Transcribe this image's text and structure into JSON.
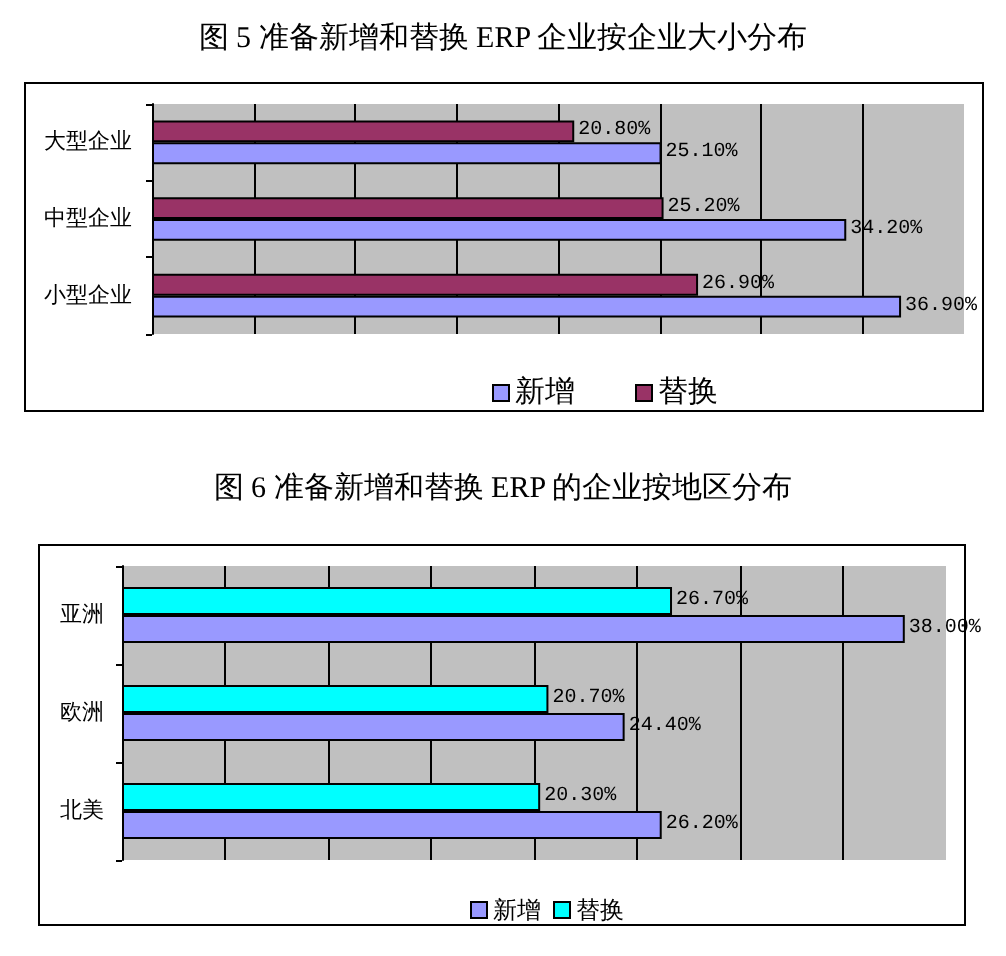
{
  "chart_data": [
    {
      "type": "bar",
      "orientation": "horizontal",
      "title": "图 5 准备新增和替换 ERP 企业按企业大小分布",
      "categories": [
        "大型企业",
        "中型企业",
        "小型企业"
      ],
      "series": [
        {
          "name": "新增",
          "color": "#9999ff",
          "values": [
            25.1,
            34.2,
            36.9
          ],
          "value_labels": [
            "25.10%",
            "34.20%",
            "36.90%"
          ]
        },
        {
          "name": "替换",
          "color": "#993366",
          "values": [
            20.8,
            25.2,
            26.9
          ],
          "value_labels": [
            "20.80%",
            "25.20%",
            "26.90%"
          ]
        }
      ],
      "xlim": [
        0,
        40
      ],
      "xticks": [
        {
          "value": 0,
          "label": null
        },
        {
          "value": 5,
          "label": null
        },
        {
          "value": 10,
          "label": null
        },
        {
          "value": 15,
          "label": null
        },
        {
          "value": 20,
          "label": null
        },
        {
          "value": 25,
          "label": null
        },
        {
          "value": 30,
          "label": null
        },
        {
          "value": 35,
          "label": null
        },
        {
          "value": 40,
          "label": null
        }
      ],
      "tick_labels": "y",
      "grid": "x",
      "legend": "bottom"
    },
    {
      "type": "bar",
      "orientation": "horizontal",
      "title": "图 6 准备新增和替换 ERP 的企业按地区分布",
      "categories": [
        "亚洲",
        "欧洲",
        "北美"
      ],
      "series": [
        {
          "name": "新增",
          "color": "#9999ff",
          "values": [
            38.0,
            24.4,
            26.2
          ],
          "value_labels": [
            "38.00%",
            "24.40%",
            "26.20%"
          ]
        },
        {
          "name": "替换",
          "color": "#00ffff",
          "values": [
            26.7,
            20.7,
            20.3
          ],
          "value_labels": [
            "26.70%",
            "20.70%",
            "20.30%"
          ]
        }
      ],
      "xlim": [
        0,
        40
      ],
      "xticks": [
        {
          "value": 0,
          "label": null
        },
        {
          "value": 5,
          "label": null
        },
        {
          "value": 10,
          "label": null
        },
        {
          "value": 15,
          "label": null
        },
        {
          "value": 20,
          "label": null
        },
        {
          "value": 25,
          "label": null
        },
        {
          "value": 30,
          "label": null
        },
        {
          "value": 35,
          "label": null
        },
        {
          "value": 40,
          "label": null
        }
      ],
      "tick_labels": "y",
      "grid": "x",
      "legend": "bottom"
    }
  ]
}
